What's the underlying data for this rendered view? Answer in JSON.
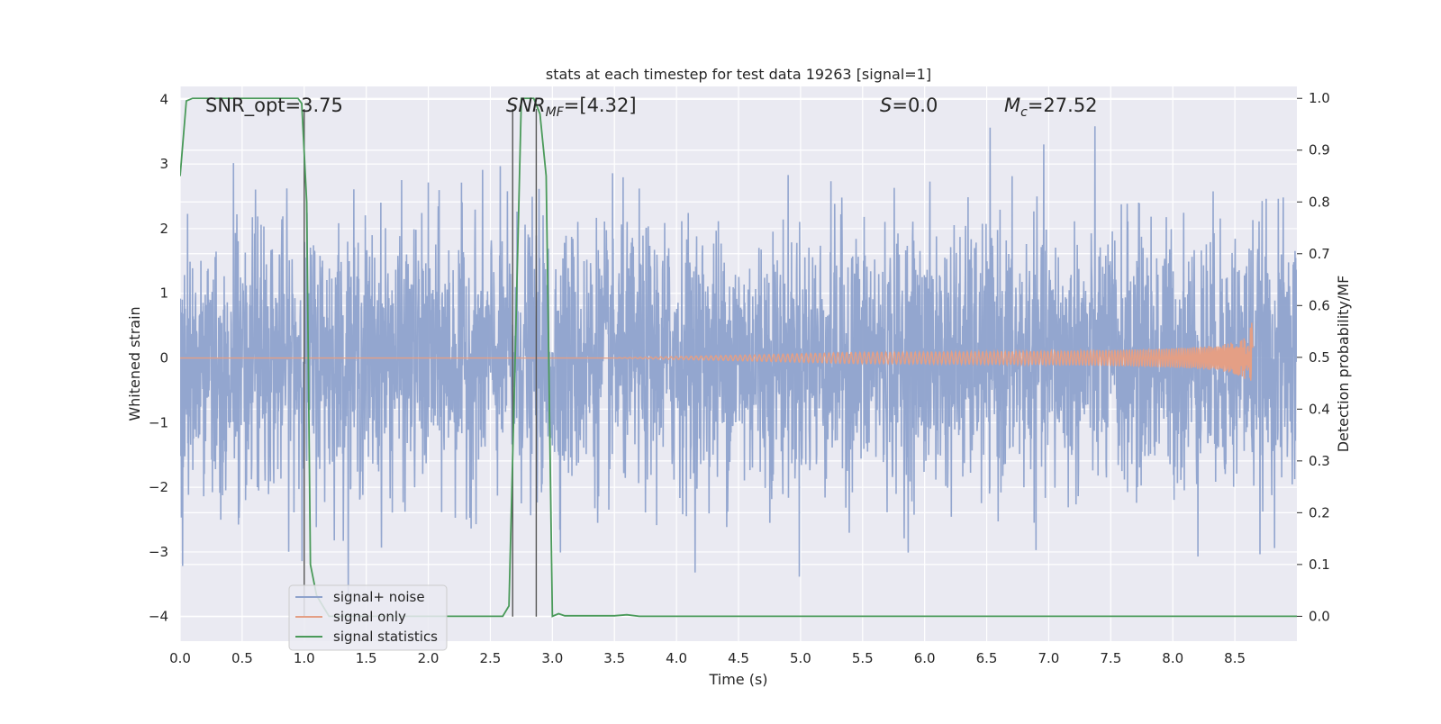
{
  "chart_data": {
    "type": "line",
    "title": "stats at each timestep for test data 19263 [signal=1]",
    "xlabel": "Time (s)",
    "ylabel_left": "Whitened strain",
    "ylabel_right": "Detection probability/MF",
    "xlim": [
      0.0,
      9.0
    ],
    "ylim_left": [
      -4.38,
      4.2
    ],
    "ylim_right": [
      -0.048,
      1.023
    ],
    "x_ticks": [
      "0.0",
      "0.5",
      "1.0",
      "1.5",
      "2.0",
      "2.5",
      "3.0",
      "3.5",
      "4.0",
      "4.5",
      "5.0",
      "5.5",
      "6.0",
      "6.5",
      "7.0",
      "7.5",
      "8.0",
      "8.5"
    ],
    "y_ticks_left": [
      "4",
      "3",
      "2",
      "1",
      "0",
      "−1",
      "−2",
      "−3",
      "−4"
    ],
    "y_ticks_right": [
      "1.0",
      "0.9",
      "0.8",
      "0.7",
      "0.6",
      "0.5",
      "0.4",
      "0.3",
      "0.2",
      "0.1",
      "0.0"
    ],
    "grid": true,
    "annotations": [
      {
        "label": "SNR_opt=3.75",
        "x": 0.2,
        "y": 3.8
      },
      {
        "label": "SNR_MF=[4.32]",
        "x": 2.6,
        "y": 3.8
      },
      {
        "label": "S=0.0",
        "x": 5.6,
        "y": 3.8
      },
      {
        "label": "M_c=27.52",
        "x": 6.6,
        "y": 3.8
      }
    ],
    "vlines": [
      1.0,
      2.68,
      2.87
    ],
    "vline_range": [
      -4.0,
      3.85
    ],
    "legend": {
      "placement": "lower-left",
      "entries": [
        "signal+ noise",
        "signal only",
        "signal statistics"
      ]
    },
    "series": [
      {
        "name": "signal+ noise",
        "axis": "left",
        "color": "#8ea2cc",
        "description": "whitened noisy strain, roughly Gaussian, range about -3.7 to 3.8",
        "noise_sigma": 1.0
      },
      {
        "name": "signal only",
        "axis": "left",
        "color": "#e49f85",
        "chirp": {
          "t_start": 3.5,
          "t_merger": 8.65,
          "peak_amplitude": 0.9
        }
      },
      {
        "name": "signal statistics",
        "axis": "right",
        "color": "#4a9a5a",
        "x": [
          0.0,
          0.05,
          0.1,
          0.2,
          0.95,
          0.98,
          1.02,
          1.05,
          1.1,
          1.2,
          2.6,
          2.65,
          2.7,
          2.75,
          2.85,
          2.9,
          2.95,
          3.0,
          3.05,
          3.1,
          3.5,
          3.6,
          3.7,
          4.0,
          9.0
        ],
        "values": [
          0.85,
          0.995,
          1.0,
          1.0,
          1.0,
          0.99,
          0.8,
          0.1,
          0.04,
          0.0,
          0.0,
          0.02,
          0.5,
          1.0,
          1.0,
          0.97,
          0.85,
          0.0,
          0.005,
          0.001,
          0.001,
          0.003,
          0.0,
          0.0,
          0.0
        ]
      }
    ]
  }
}
